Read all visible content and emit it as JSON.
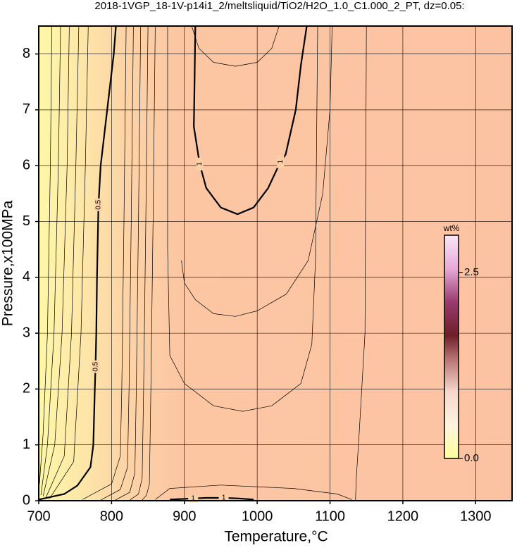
{
  "chart_data": {
    "type": "contour",
    "title": "2018-1VGP_18-1V-p14i1_2/meltsliquid/TiO2/H2O_1.0_C1.000_2_PT, dz=0.05:",
    "x_label": "Temperature,°C",
    "y_label": "Pressure,x100MPa",
    "xlim": [
      700,
      1350
    ],
    "ylim": [
      0,
      8.5
    ],
    "xticks": [
      700,
      800,
      900,
      1000,
      1100,
      1200,
      1300
    ],
    "yticks": [
      0,
      1,
      2,
      3,
      4,
      5,
      6,
      7,
      8
    ],
    "grid": true,
    "colorbar": {
      "label": "wt%",
      "lim": [
        0,
        3
      ],
      "ticks": [
        {
          "value": 0,
          "label": "0.0"
        },
        {
          "value": 2.5,
          "label": "2.5"
        }
      ]
    },
    "contours": [
      {
        "level": 0.5,
        "x": [
          700,
          735,
          753,
          771,
          775,
          777,
          778,
          779,
          780,
          782,
          785,
          794,
          803,
          806
        ],
        "y": [
          0.02,
          0.12,
          0.27,
          0.6,
          1,
          2,
          2.4,
          3,
          4,
          5.3,
          6,
          7,
          8,
          8.5
        ]
      },
      {
        "level": 1,
        "x": [
          915,
          914,
          913,
          921,
          930,
          950,
          973,
          995,
          1015,
          1032,
          1039,
          1053,
          1060,
          1068
        ],
        "y": [
          8.5,
          7.5,
          6.7,
          6.03,
          5.6,
          5.25,
          5.13,
          5.25,
          5.6,
          6.07,
          6.2,
          7,
          7.8,
          8.5
        ]
      },
      {
        "level": 1,
        "x": [
          880,
          912,
          930,
          954,
          975,
          995
        ],
        "y": [
          0.02,
          0.04,
          0.05,
          0.05,
          0.04,
          0.02
        ]
      },
      {
        "x": [
          910,
          920,
          940,
          970,
          1000,
          1020,
          1030
        ],
        "y": [
          8.5,
          8.1,
          7.85,
          7.78,
          7.85,
          8.1,
          8.5
        ]
      },
      {
        "x": [
          896,
          900,
          915,
          940,
          970,
          1000,
          1040,
          1070,
          1090,
          1100,
          1103
        ],
        "y": [
          4.3,
          3.9,
          3.6,
          3.35,
          3.3,
          3.4,
          3.7,
          4.3,
          5.5,
          7,
          8.5
        ]
      },
      {
        "x": [
          877,
          877,
          880,
          900,
          940,
          980,
          1020,
          1030,
          1060,
          1075,
          1080,
          1083
        ],
        "y": [
          8.5,
          4.5,
          2.6,
          2.1,
          1.7,
          1.6,
          1.7,
          1.8,
          2.1,
          2.8,
          4.3,
          8.5
        ]
      },
      {
        "x": [
          1150,
          1148,
          1140,
          1136,
          1135
        ],
        "y": [
          8.5,
          3,
          1.2,
          0.4,
          0
        ]
      },
      {
        "x": [
          860,
          880,
          950,
          1050,
          1110,
          1130
        ],
        "y": [
          0.02,
          0.22,
          0.28,
          0.22,
          0.12,
          0.02
        ]
      },
      {
        "x": [
          718,
          716,
          712,
          706,
          701
        ],
        "y": [
          8.5,
          6,
          3,
          1.2,
          0.3
        ]
      },
      {
        "x": [
          730,
          727,
          721,
          712,
          703
        ],
        "y": [
          8.5,
          6,
          3,
          1,
          0.1
        ]
      },
      {
        "x": [
          742,
          739,
          732,
          722,
          706
        ],
        "y": [
          8.5,
          6,
          3,
          1,
          0.08
        ]
      },
      {
        "x": [
          755,
          751,
          745,
          735,
          710
        ],
        "y": [
          8.5,
          6,
          3,
          0.8,
          0.06
        ]
      },
      {
        "x": [
          768,
          764,
          758,
          748,
          715
        ],
        "y": [
          8.5,
          6,
          3,
          0.7,
          0.04
        ]
      },
      {
        "x": [
          820,
          817,
          814,
          812,
          800,
          760
        ],
        "y": [
          8.5,
          5,
          2,
          0.8,
          0.3,
          0.02
        ]
      },
      {
        "x": [
          830,
          827,
          824,
          822,
          812,
          785
        ],
        "y": [
          8.5,
          5,
          2,
          0.6,
          0.2,
          0.01
        ]
      },
      {
        "x": [
          840,
          837,
          834,
          832,
          825,
          805
        ],
        "y": [
          8.5,
          5,
          2,
          0.5,
          0.15,
          0.01
        ]
      },
      {
        "x": [
          850,
          847,
          844,
          842,
          837,
          825
        ],
        "y": [
          8.5,
          5,
          2,
          0.4,
          0.12,
          0.01
        ]
      },
      {
        "x": [
          860,
          857,
          854,
          852,
          848,
          842
        ],
        "y": [
          8.5,
          5,
          2,
          0.3,
          0.1,
          0.01
        ]
      }
    ]
  }
}
